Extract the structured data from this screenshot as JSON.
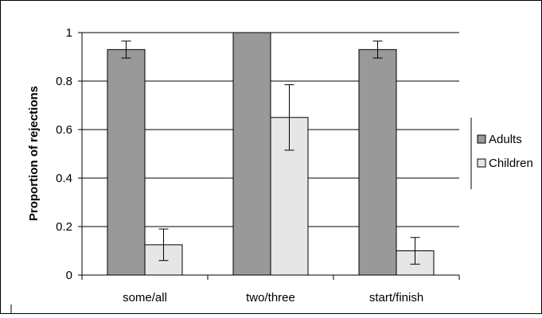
{
  "chart_data": {
    "type": "bar",
    "categories": [
      "some/all",
      "two/three",
      "start/finish"
    ],
    "series": [
      {
        "name": "Adults",
        "color": "#999999",
        "values": [
          0.93,
          1.0,
          0.93
        ],
        "error": [
          0.035,
          0.0,
          0.035
        ]
      },
      {
        "name": "Children",
        "color": "#e6e6e6",
        "values": [
          0.125,
          0.65,
          0.1
        ],
        "error": [
          0.065,
          0.135,
          0.055
        ]
      }
    ],
    "title": "",
    "xlabel": "",
    "ylabel": "Proportion of rejections",
    "ylim": [
      0,
      1
    ],
    "yticks": [
      "0",
      "0.2",
      "0.4",
      "0.6",
      "0.8",
      "1"
    ],
    "grid": true,
    "legend": "right"
  }
}
